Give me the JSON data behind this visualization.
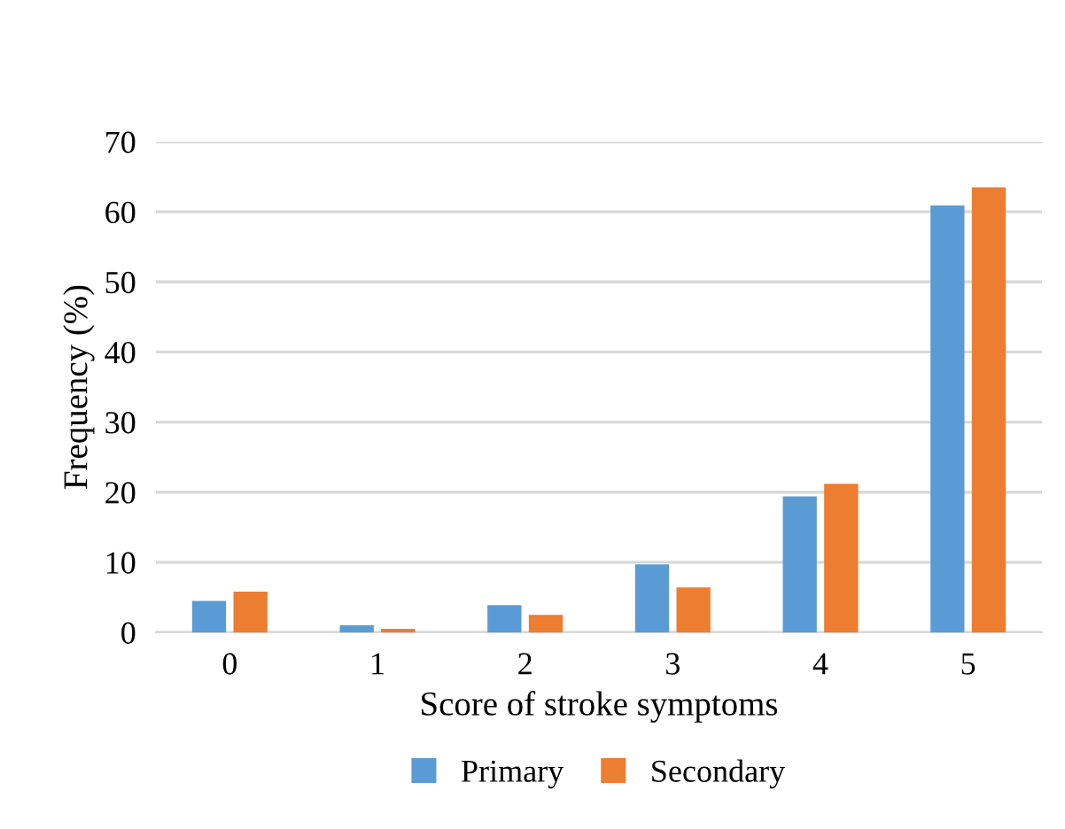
{
  "chart_data": {
    "type": "bar",
    "xlabel": "Score of stroke symptoms",
    "ylabel": "Frequency (%)",
    "categories": [
      "0",
      "1",
      "2",
      "3",
      "4",
      "5"
    ],
    "series": [
      {
        "name": "Primary",
        "color": "#5b9bd5",
        "values": [
          4.5,
          1.0,
          3.9,
          9.7,
          19.4,
          60.9
        ]
      },
      {
        "name": "Secondary",
        "color": "#ed7d31",
        "values": [
          5.8,
          0.5,
          2.5,
          6.4,
          21.2,
          63.5
        ]
      }
    ],
    "ylim": [
      0,
      70
    ],
    "yticks": [
      0,
      10,
      20,
      30,
      40,
      50,
      60,
      70
    ],
    "grid": "y",
    "legend": "bottom"
  }
}
